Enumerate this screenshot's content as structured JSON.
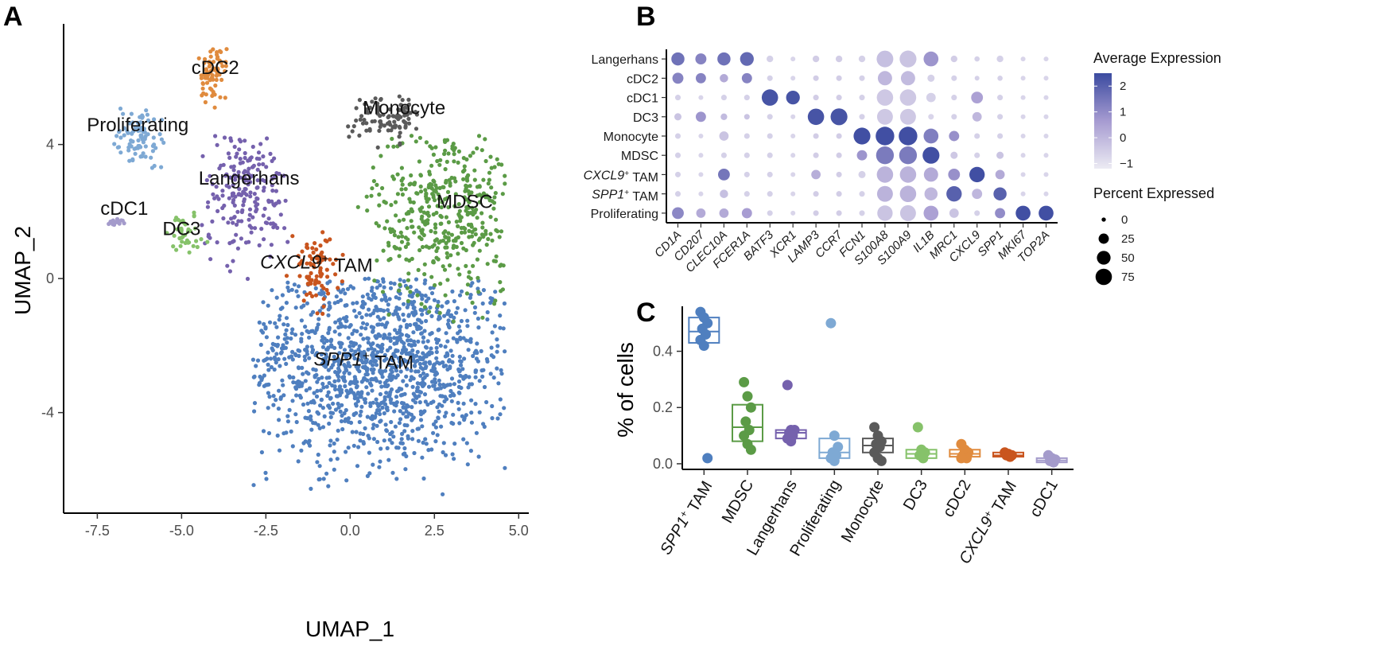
{
  "panels": {
    "a": "A",
    "b": "B",
    "c": "C"
  },
  "colors": {
    "SPP1+ TAM": "#4f7fbf",
    "MDSC": "#5b9b46",
    "Langerhans": "#7561ad",
    "Proliferating": "#7ea9d4",
    "Monocyte": "#5a5a5a",
    "DC3": "#86c26a",
    "cDC2": "#e08b3e",
    "CXCL9+ TAM": "#c9551e",
    "cDC1": "#a49bcb"
  },
  "chart_data": [
    {
      "id": "umap",
      "type": "scatter",
      "xlabel": "UMAP_1",
      "ylabel": "UMAP_2",
      "xlim": [
        -8.5,
        5.3
      ],
      "ylim": [
        -7.0,
        7.6
      ],
      "xticks": [
        -7.5,
        -5.0,
        -2.5,
        0.0,
        2.5,
        5.0
      ],
      "xtick_labels": [
        "-7.5",
        "-5.0",
        "-2.5",
        "0.0",
        "2.5",
        "5.0"
      ],
      "yticks": [
        -4,
        0,
        4
      ],
      "ytick_labels": [
        "-4",
        "0",
        "4"
      ],
      "cluster_labels": [
        {
          "key": "cDC2",
          "pre": "",
          "it": "",
          "sup": "",
          "post": "cDC2",
          "x": -4.0,
          "y": 6.1
        },
        {
          "key": "Proliferating",
          "pre": "",
          "it": "",
          "sup": "",
          "post": "Proliferating",
          "x": -6.3,
          "y": 4.4
        },
        {
          "key": "Monocyte",
          "pre": "",
          "it": "",
          "sup": "",
          "post": "Monocyte",
          "x": 1.6,
          "y": 4.9
        },
        {
          "key": "Langerhans",
          "pre": "",
          "it": "",
          "sup": "",
          "post": "Langerhans",
          "x": -3.0,
          "y": 2.8
        },
        {
          "key": "MDSC",
          "pre": "",
          "it": "",
          "sup": "",
          "post": "MDSC",
          "x": 3.4,
          "y": 2.1
        },
        {
          "key": "cDC1",
          "pre": "",
          "it": "",
          "sup": "",
          "post": "cDC1",
          "x": -6.7,
          "y": 1.9
        },
        {
          "key": "DC3",
          "pre": "",
          "it": "",
          "sup": "",
          "post": "DC3",
          "x": -5.0,
          "y": 1.3
        },
        {
          "key": "CXCL9+ TAM",
          "pre": "",
          "it": "CXCL9",
          "sup": "+",
          "post": " TAM",
          "x": -1.0,
          "y": 0.3
        },
        {
          "key": "SPP1+ TAM",
          "pre": "",
          "it": "SPP1",
          "sup": "+",
          "post": " TAM",
          "x": 0.4,
          "y": -2.6
        }
      ],
      "clusters": [
        {
          "name": "SPP1+ TAM",
          "n": 1300,
          "cx": 0.8,
          "cy": -2.5,
          "sx": 2.1,
          "sy": 1.5,
          "xmin": -2.9,
          "xmax": 4.6,
          "ymin": -6.5,
          "ymax": 0.0
        },
        {
          "name": "MDSC",
          "n": 420,
          "cx": 2.9,
          "cy": 2.0,
          "sx": 1.1,
          "sy": 1.4,
          "xmin": -0.1,
          "xmax": 4.6,
          "ymin": -1.3,
          "ymax": 4.3
        },
        {
          "name": "Langerhans",
          "n": 200,
          "cx": -3.1,
          "cy": 2.6,
          "sx": 0.7,
          "sy": 0.9,
          "xmin": -4.4,
          "xmax": -1.8,
          "ymin": -0.4,
          "ymax": 4.3
        },
        {
          "name": "Proliferating",
          "n": 85,
          "cx": -6.3,
          "cy": 4.2,
          "sx": 0.45,
          "sy": 0.45,
          "xmin": -7.0,
          "xmax": -5.4,
          "ymin": 3.3,
          "ymax": 5.1
        },
        {
          "name": "Monocyte",
          "n": 95,
          "cx": 1.2,
          "cy": 4.8,
          "sx": 0.6,
          "sy": 0.35,
          "xmin": -0.4,
          "xmax": 2.0,
          "ymin": 3.8,
          "ymax": 5.6
        },
        {
          "name": "DC3",
          "n": 40,
          "cx": -4.9,
          "cy": 1.3,
          "sx": 0.45,
          "sy": 0.4,
          "xmin": -5.6,
          "xmax": -4.0,
          "ymin": 0.7,
          "ymax": 2.0
        },
        {
          "name": "cDC2",
          "n": 75,
          "cx": -4.1,
          "cy": 6.1,
          "sx": 0.22,
          "sy": 0.4,
          "xmin": -4.5,
          "xmax": -3.6,
          "ymin": 4.9,
          "ymax": 7.0
        },
        {
          "name": "CXCL9+ TAM",
          "n": 85,
          "cx": -1.0,
          "cy": 0.3,
          "sx": 0.35,
          "sy": 0.55,
          "xmin": -1.9,
          "xmax": -0.2,
          "ymin": -1.1,
          "ymax": 1.4
        },
        {
          "name": "cDC1",
          "n": 20,
          "cx": -6.95,
          "cy": 1.7,
          "sx": 0.15,
          "sy": 0.05,
          "xmin": -7.3,
          "xmax": -6.7,
          "ymin": 1.6,
          "ymax": 1.8
        }
      ]
    },
    {
      "id": "dotplot",
      "type": "scatter",
      "subtype": "dot plot",
      "rows": [
        "Langerhans",
        "cDC2",
        "cDC1",
        "DC3",
        "Monocyte",
        "MDSC",
        "CXCL9+ TAM",
        "SPP1+ TAM",
        "Proliferating"
      ],
      "row_labels": [
        {
          "it": "",
          "sup": "",
          "post": "Langerhans"
        },
        {
          "it": "",
          "sup": "",
          "post": "cDC2"
        },
        {
          "it": "",
          "sup": "",
          "post": "cDC1"
        },
        {
          "it": "",
          "sup": "",
          "post": "DC3"
        },
        {
          "it": "",
          "sup": "",
          "post": "Monocyte"
        },
        {
          "it": "",
          "sup": "",
          "post": "MDSC"
        },
        {
          "it": "CXCL9",
          "sup": "+",
          "post": " TAM"
        },
        {
          "it": "SPP1",
          "sup": "+",
          "post": " TAM"
        },
        {
          "it": "",
          "sup": "",
          "post": "Proliferating"
        }
      ],
      "genes": [
        "CD1A",
        "CD207",
        "CLEC10A",
        "FCER1A",
        "BATF3",
        "XCR1",
        "LAMP3",
        "CCR7",
        "FCN1",
        "S100A8",
        "S100A9",
        "IL1B",
        "MRC1",
        "CXCL9",
        "SPP1",
        "MKI67",
        "TOP2A"
      ],
      "avg_expression": [
        [
          1.6,
          1.2,
          1.6,
          1.8,
          -0.6,
          -0.7,
          -0.5,
          -0.5,
          -0.6,
          -0.2,
          -0.3,
          0.8,
          -0.5,
          -0.6,
          -0.6,
          -0.7,
          -0.7
        ],
        [
          1.2,
          1.2,
          0.3,
          1.2,
          -0.6,
          -0.7,
          -0.5,
          -0.5,
          -0.6,
          0.0,
          -0.1,
          -0.6,
          -0.6,
          -0.6,
          -0.6,
          -0.7,
          -0.7
        ],
        [
          -0.6,
          -0.7,
          -0.6,
          -0.6,
          2.3,
          2.3,
          -0.5,
          -0.5,
          -0.6,
          -0.4,
          -0.4,
          -0.6,
          -0.6,
          0.5,
          -0.6,
          -0.7,
          -0.7
        ],
        [
          -0.3,
          0.8,
          -0.1,
          -0.3,
          -0.6,
          -0.7,
          2.3,
          2.3,
          -0.6,
          -0.4,
          -0.4,
          -0.7,
          -0.6,
          0.0,
          -0.6,
          -0.7,
          -0.7
        ],
        [
          -0.6,
          -0.7,
          -0.3,
          -0.6,
          -0.6,
          -0.7,
          -0.5,
          -0.5,
          2.4,
          2.4,
          2.4,
          1.3,
          0.9,
          -0.6,
          -0.6,
          -0.7,
          -0.7
        ],
        [
          -0.6,
          -0.7,
          -0.6,
          -0.6,
          -0.6,
          -0.7,
          -0.5,
          -0.5,
          0.8,
          1.4,
          1.4,
          2.4,
          -0.4,
          -0.6,
          -0.3,
          -0.7,
          -0.7
        ],
        [
          -0.6,
          -0.7,
          1.5,
          -0.6,
          -0.6,
          -0.7,
          0.2,
          -0.5,
          -0.6,
          0.1,
          0.1,
          0.3,
          0.9,
          2.4,
          0.3,
          -0.7,
          -0.7
        ],
        [
          -0.6,
          -0.7,
          -0.2,
          -0.6,
          -0.6,
          -0.7,
          -0.5,
          -0.5,
          -0.6,
          0.1,
          0.1,
          0.0,
          2.0,
          0.0,
          2.0,
          -0.7,
          -0.7
        ],
        [
          1.1,
          0.3,
          0.3,
          0.6,
          -0.6,
          -0.7,
          -0.5,
          -0.5,
          -0.6,
          -0.3,
          -0.3,
          0.5,
          -0.3,
          -0.6,
          1.0,
          2.4,
          2.4
        ]
      ],
      "pct_expressed": [
        [
          45,
          30,
          45,
          50,
          8,
          3,
          8,
          8,
          8,
          78,
          80,
          60,
          8,
          4,
          8,
          3,
          3
        ],
        [
          30,
          25,
          15,
          25,
          5,
          3,
          5,
          5,
          5,
          55,
          55,
          10,
          5,
          3,
          4,
          3,
          3
        ],
        [
          5,
          3,
          5,
          5,
          75,
          50,
          5,
          5,
          5,
          75,
          75,
          20,
          5,
          35,
          5,
          3,
          3
        ],
        [
          10,
          25,
          8,
          5,
          5,
          3,
          75,
          80,
          5,
          70,
          70,
          5,
          5,
          20,
          5,
          3,
          3
        ],
        [
          5,
          3,
          20,
          5,
          5,
          3,
          5,
          5,
          80,
          100,
          100,
          60,
          25,
          5,
          5,
          3,
          3
        ],
        [
          5,
          3,
          5,
          5,
          5,
          3,
          5,
          5,
          25,
          90,
          90,
          80,
          10,
          5,
          10,
          3,
          3
        ],
        [
          5,
          3,
          35,
          5,
          5,
          3,
          20,
          5,
          10,
          75,
          75,
          55,
          35,
          65,
          20,
          3,
          3
        ],
        [
          5,
          3,
          15,
          5,
          5,
          3,
          5,
          5,
          5,
          70,
          75,
          45,
          65,
          25,
          45,
          3,
          3
        ],
        [
          35,
          20,
          20,
          25,
          5,
          3,
          5,
          5,
          5,
          65,
          70,
          60,
          20,
          5,
          25,
          60,
          60
        ]
      ],
      "color_legend": {
        "title": "Average Expression",
        "ticks": [
          2,
          1,
          0,
          -1
        ],
        "tick_labels": [
          "2",
          "1",
          "0",
          "−1"
        ],
        "range": [
          -1.2,
          2.5
        ],
        "low": "#ecebf3",
        "mid": "#a69bd1",
        "high": "#3b4ba0"
      },
      "size_legend": {
        "title": "Percent Expressed",
        "values": [
          0,
          25,
          50,
          75
        ],
        "labels": [
          "0",
          "25",
          "50",
          "75"
        ]
      }
    },
    {
      "id": "boxplot",
      "type": "box",
      "ylabel": "% of cells",
      "ylim": [
        -0.02,
        0.56
      ],
      "yticks": [
        0.0,
        0.2,
        0.4
      ],
      "ytick_labels": [
        "0.0",
        "0.2",
        "0.4"
      ],
      "categories": [
        "SPP1+ TAM",
        "MDSC",
        "Langerhans",
        "Proliferating",
        "Monocyte",
        "DC3",
        "cDC2",
        "CXCL9+ TAM",
        "cDC1"
      ],
      "category_labels": [
        {
          "it": "SPP1",
          "sup": "+",
          "post": " TAM"
        },
        {
          "it": "",
          "sup": "",
          "post": "MDSC"
        },
        {
          "it": "",
          "sup": "",
          "post": "Langerhans"
        },
        {
          "it": "",
          "sup": "",
          "post": "Proliferating"
        },
        {
          "it": "",
          "sup": "",
          "post": "Monocyte"
        },
        {
          "it": "",
          "sup": "",
          "post": "DC3"
        },
        {
          "it": "",
          "sup": "",
          "post": "cDC2"
        },
        {
          "it": "CXCL9",
          "sup": "+",
          "post": " TAM"
        },
        {
          "it": "",
          "sup": "",
          "post": "cDC1"
        }
      ],
      "boxes": [
        {
          "q1": 0.43,
          "median": 0.47,
          "q3": 0.52,
          "points": [
            0.54,
            0.52,
            0.5,
            0.48,
            0.46,
            0.44,
            0.42,
            0.02
          ]
        },
        {
          "q1": 0.08,
          "median": 0.13,
          "q3": 0.21,
          "points": [
            0.29,
            0.24,
            0.2,
            0.15,
            0.12,
            0.1,
            0.07,
            0.05
          ]
        },
        {
          "q1": 0.09,
          "median": 0.11,
          "q3": 0.12,
          "points": [
            0.28,
            0.12,
            0.12,
            0.11,
            0.1,
            0.09,
            0.08
          ]
        },
        {
          "q1": 0.02,
          "median": 0.04,
          "q3": 0.09,
          "points": [
            0.5,
            0.1,
            0.06,
            0.04,
            0.03,
            0.02,
            0.01
          ]
        },
        {
          "q1": 0.04,
          "median": 0.065,
          "q3": 0.09,
          "points": [
            0.13,
            0.1,
            0.08,
            0.07,
            0.06,
            0.04,
            0.02,
            0.01
          ]
        },
        {
          "q1": 0.02,
          "median": 0.035,
          "q3": 0.05,
          "points": [
            0.13,
            0.05,
            0.04,
            0.03,
            0.02
          ]
        },
        {
          "q1": 0.025,
          "median": 0.035,
          "q3": 0.05,
          "points": [
            0.07,
            0.05,
            0.04,
            0.03,
            0.02,
            0.02
          ]
        },
        {
          "q1": 0.025,
          "median": 0.03,
          "q3": 0.04,
          "points": [
            0.04,
            0.035,
            0.03,
            0.03,
            0.025
          ]
        },
        {
          "q1": 0.005,
          "median": 0.012,
          "q3": 0.02,
          "points": [
            0.03,
            0.02,
            0.015,
            0.01,
            0.005
          ]
        }
      ]
    }
  ]
}
